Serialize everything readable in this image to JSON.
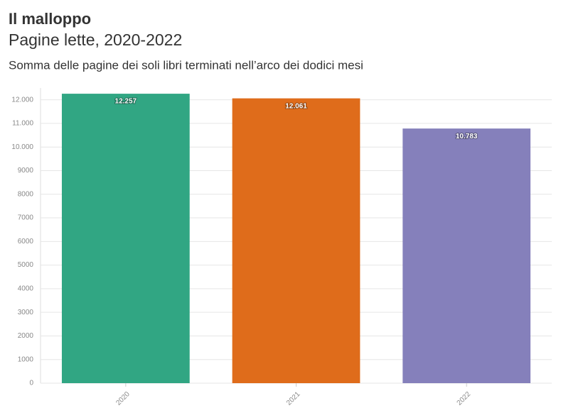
{
  "chart_data": {
    "type": "bar",
    "title": "Il malloppo",
    "subtitle": "Pagine lette, 2020-2022",
    "description": "Somma delle pagine dei soli libri terminati nell’arco dei dodici mesi",
    "categories": [
      "2020",
      "2021",
      "2022"
    ],
    "values": [
      12257,
      12061,
      10783
    ],
    "value_labels": [
      "12.257",
      "12.061",
      "10.783"
    ],
    "colors": [
      "#31a683",
      "#df6c1b",
      "#8580bb"
    ],
    "ylim": [
      0,
      12500
    ],
    "yticks": [
      0,
      1000,
      2000,
      3000,
      4000,
      5000,
      6000,
      7000,
      8000,
      9000,
      {
        "value": 10000,
        "label": "10.000"
      },
      {
        "value": 11000,
        "label": "11.000"
      },
      {
        "value": 12000,
        "label": "12.000"
      }
    ],
    "grid": true
  }
}
